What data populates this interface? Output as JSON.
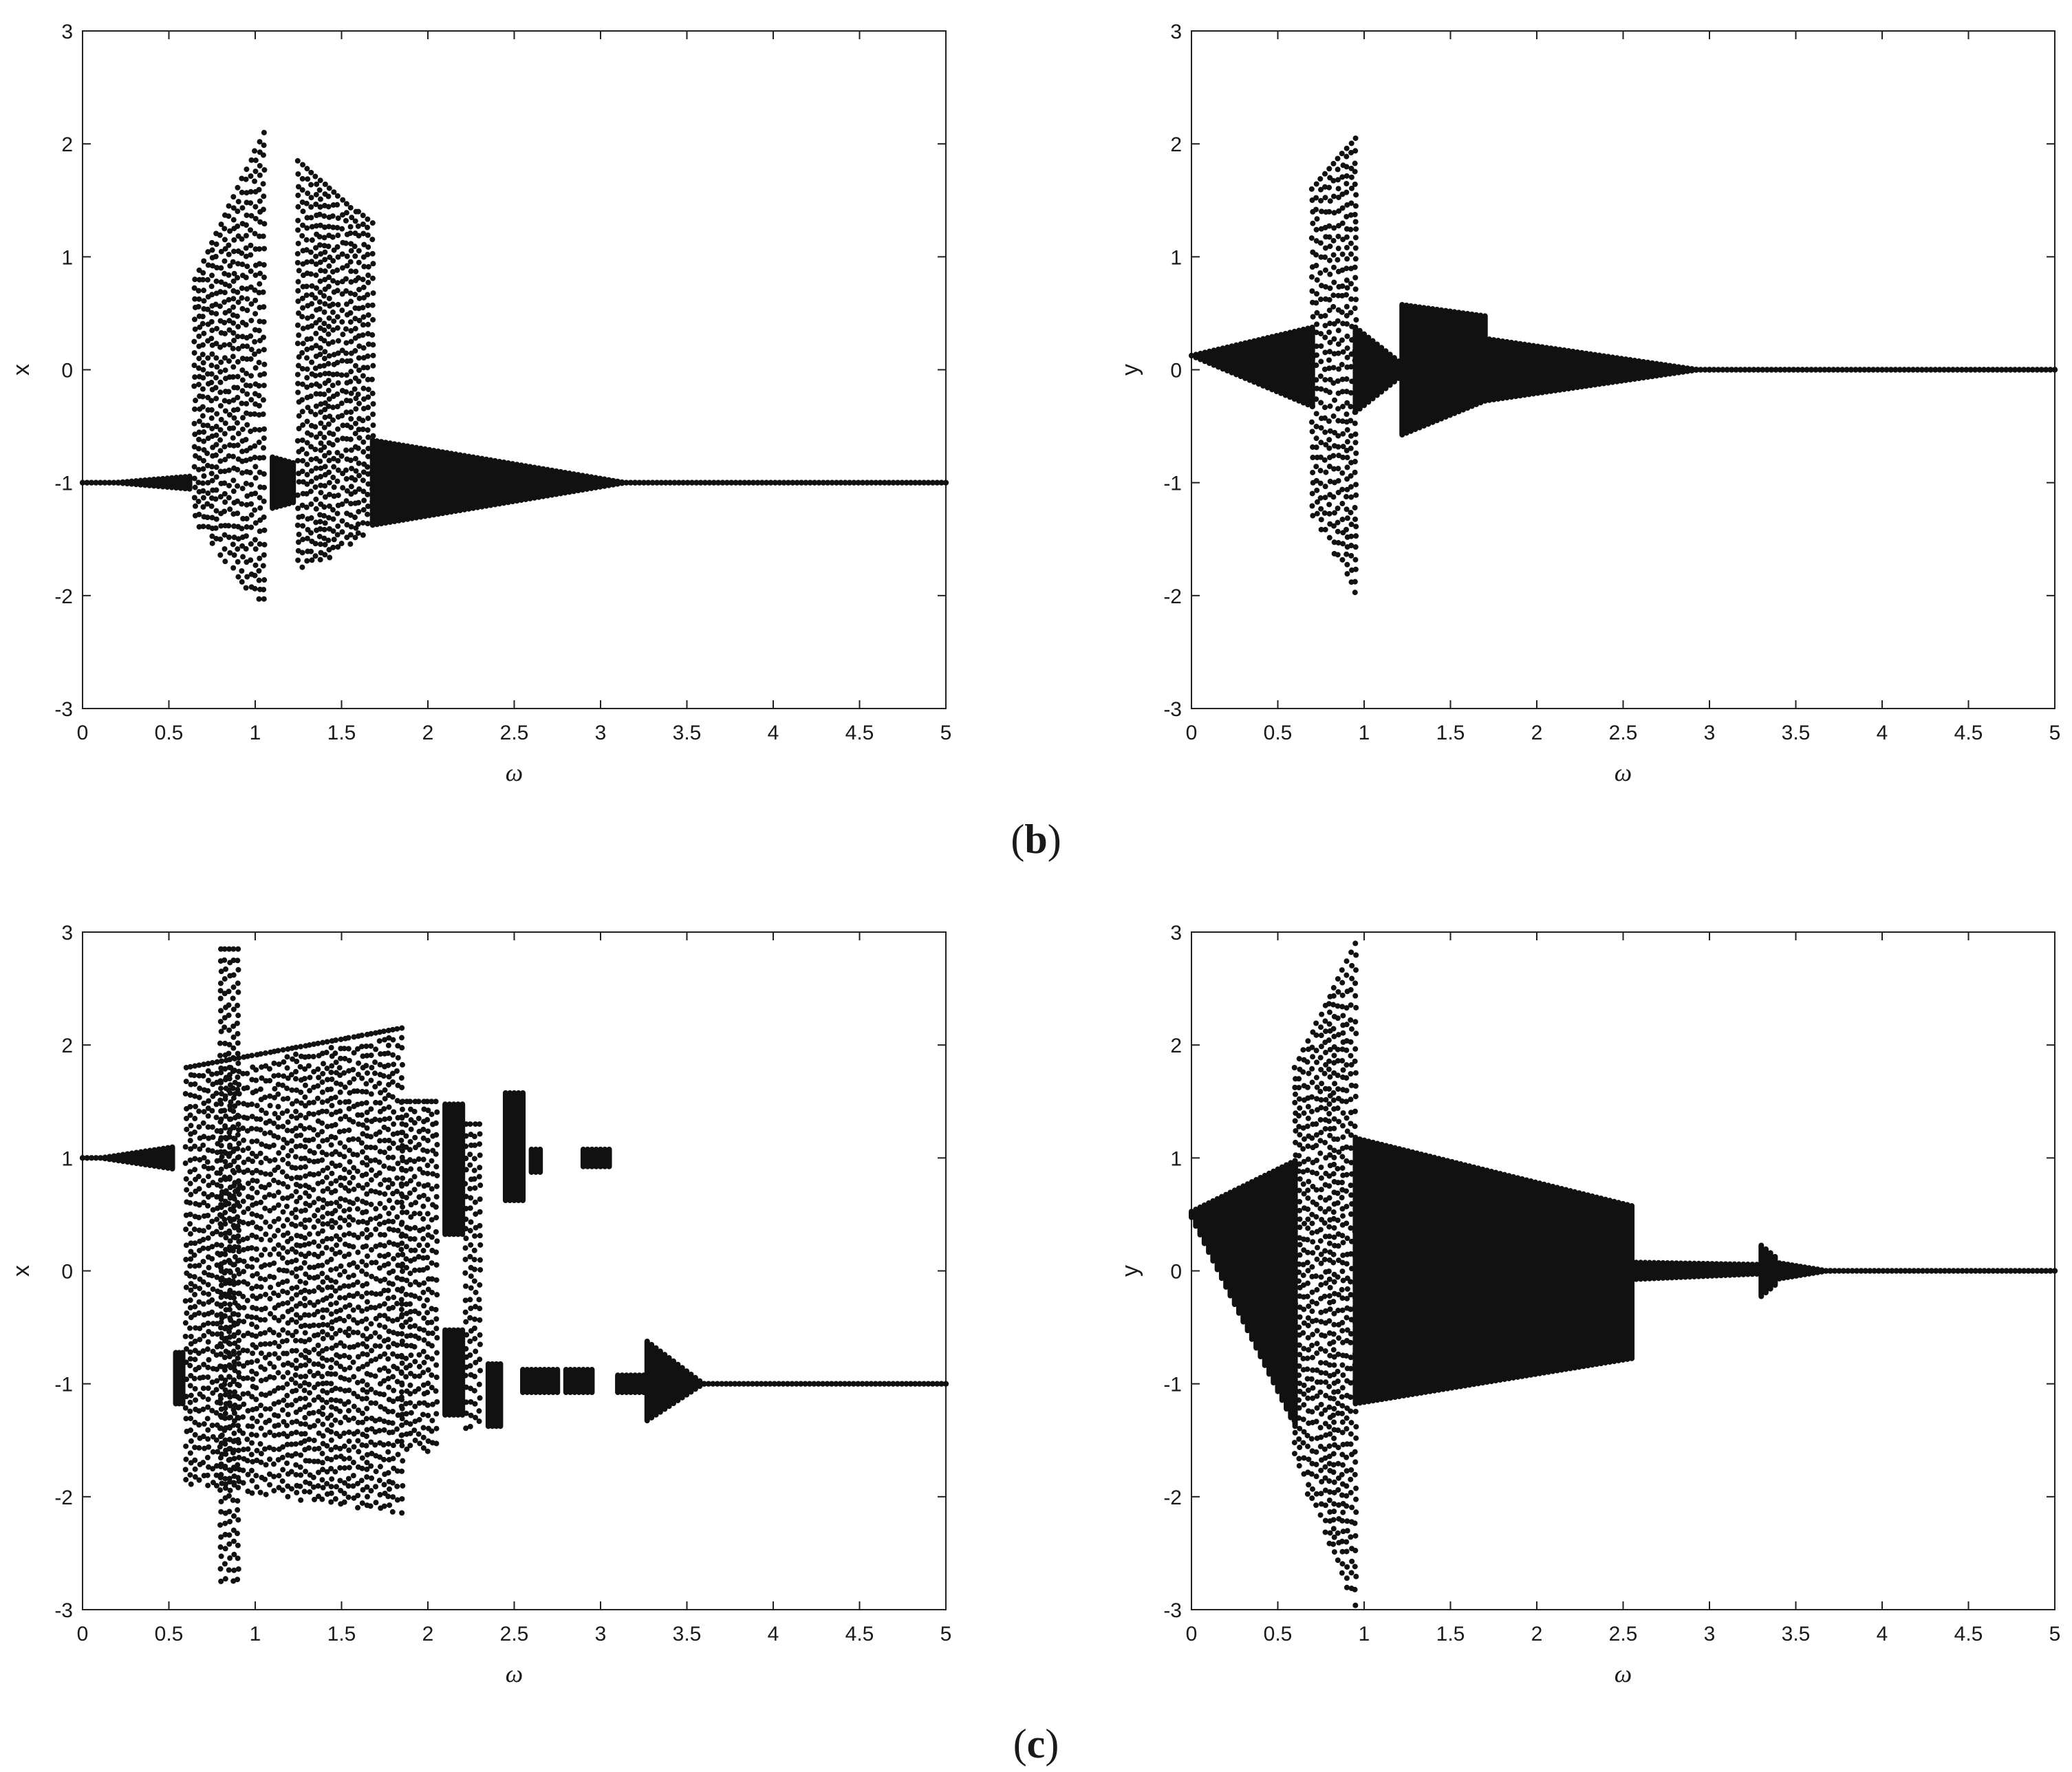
{
  "panels": [
    {
      "label": "b"
    },
    {
      "label": "c"
    }
  ],
  "chart_data": [
    {
      "type": "scatter",
      "panel": "b",
      "title": "",
      "xlabel": "ω",
      "ylabel": "x",
      "xlim": [
        0,
        5
      ],
      "ylim": [
        -3,
        3
      ],
      "xticks": [
        "0",
        "0.5",
        "1",
        "1.5",
        "2",
        "2.5",
        "3",
        "3.5",
        "4",
        "4.5",
        "5"
      ],
      "yticks": [
        "-3",
        "-2",
        "-1",
        "0",
        "1",
        "2",
        "3"
      ],
      "grid": false,
      "bands": [
        {
          "x": [
            0.0,
            0.62
          ],
          "lo": [
            -1.0,
            -1.08
          ],
          "hi": [
            -1.0,
            -0.92
          ]
        },
        {
          "x": [
            0.65,
            1.05
          ],
          "lo": [
            -1.35,
            -2.15
          ],
          "hi": [
            0.8,
            2.1
          ],
          "sparse": true
        },
        {
          "x": [
            1.1,
            1.22
          ],
          "lo": [
            -1.25,
            -1.2
          ],
          "hi": [
            -0.75,
            -0.8
          ]
        },
        {
          "x": [
            1.25,
            1.58
          ],
          "lo": [
            -1.8,
            -1.55
          ],
          "hi": [
            1.85,
            1.4
          ],
          "sparse": true
        },
        {
          "x": [
            1.6,
            1.68
          ],
          "lo": [
            -1.5,
            -1.4
          ],
          "hi": [
            1.4,
            1.3
          ],
          "sparse": true
        },
        {
          "x": [
            1.68,
            3.2
          ],
          "lo": [
            -1.4,
            -1.01
          ],
          "hi": [
            -0.6,
            -0.99
          ]
        }
      ],
      "line": {
        "x": [
          3.2,
          5.0
        ],
        "y": -1.0
      }
    },
    {
      "type": "scatter",
      "panel": "b",
      "title": "",
      "xlabel": "ω",
      "ylabel": "y",
      "xlim": [
        0,
        5
      ],
      "ylim": [
        -3,
        3
      ],
      "xticks": [
        "0",
        "0.5",
        "1",
        "1.5",
        "2",
        "2.5",
        "3",
        "3.5",
        "4",
        "4.5",
        "5"
      ],
      "yticks": [
        "-3",
        "-2",
        "-1",
        "0",
        "1",
        "2",
        "3"
      ],
      "grid": false,
      "bands": [
        {
          "x": [
            0.0,
            0.7
          ],
          "lo": [
            0.1,
            -0.35
          ],
          "hi": [
            0.15,
            0.4
          ]
        },
        {
          "x": [
            0.7,
            0.95
          ],
          "lo": [
            -1.3,
            -2.0
          ],
          "hi": [
            1.6,
            2.05
          ],
          "sparse": true
        },
        {
          "x": [
            0.95,
            1.2
          ],
          "lo": [
            -0.4,
            -0.1
          ],
          "hi": [
            0.4,
            0.1
          ]
        },
        {
          "x": [
            1.22,
            1.7
          ],
          "lo": [
            -0.6,
            -0.3
          ],
          "hi": [
            0.6,
            0.5
          ]
        },
        {
          "x": [
            1.7,
            3.0
          ],
          "lo": [
            -0.3,
            -0.01
          ],
          "hi": [
            0.3,
            0.01
          ]
        }
      ],
      "line": {
        "x": [
          3.0,
          5.0
        ],
        "y": 0.0
      }
    },
    {
      "type": "scatter",
      "panel": "c",
      "title": "",
      "xlabel": "ω",
      "ylabel": "x",
      "xlim": [
        0,
        5
      ],
      "ylim": [
        -3,
        3
      ],
      "xticks": [
        "0",
        "0.5",
        "1",
        "1.5",
        "2",
        "2.5",
        "3",
        "3.5",
        "4",
        "4.5",
        "5"
      ],
      "yticks": [
        "-3",
        "-2",
        "-1",
        "0",
        "1",
        "2",
        "3"
      ],
      "grid": false,
      "bands": [
        {
          "x": [
            0.0,
            0.52
          ],
          "lo": [
            1.0,
            0.88
          ],
          "hi": [
            1.0,
            1.12
          ]
        },
        {
          "x": [
            0.54,
            0.58
          ],
          "lo": [
            -1.2,
            -1.2
          ],
          "hi": [
            -0.7,
            -0.7
          ]
        },
        {
          "x": [
            0.6,
            1.85
          ],
          "lo": [
            -1.9,
            -2.15
          ],
          "hi": [
            1.8,
            2.15
          ],
          "sparse": true
        },
        {
          "x": [
            0.8,
            0.9
          ],
          "lo": [
            -2.75,
            -2.75
          ],
          "hi": [
            2.85,
            2.85
          ],
          "sparse": true
        },
        {
          "x": [
            1.85,
            2.05
          ],
          "lo": [
            -1.6,
            -1.6
          ],
          "hi": [
            1.5,
            1.5
          ],
          "sparse": true
        },
        {
          "x": [
            2.1,
            2.2
          ],
          "lo": [
            0.3,
            0.3
          ],
          "hi": [
            1.5,
            1.5
          ]
        },
        {
          "x": [
            2.1,
            2.2
          ],
          "lo": [
            -1.3,
            -1.3
          ],
          "hi": [
            -0.5,
            -0.5
          ]
        },
        {
          "x": [
            2.22,
            2.3
          ],
          "lo": [
            -1.4,
            -1.4
          ],
          "hi": [
            1.3,
            1.3
          ],
          "sparse": true
        },
        {
          "x": [
            2.35,
            2.42
          ],
          "lo": [
            -1.4,
            -1.4
          ],
          "hi": [
            -0.8,
            -0.8
          ]
        },
        {
          "x": [
            2.45,
            2.55
          ],
          "lo": [
            0.6,
            0.6
          ],
          "hi": [
            1.6,
            1.6
          ]
        },
        {
          "x": [
            2.55,
            2.75
          ],
          "lo": [
            -1.1,
            -1.1
          ],
          "hi": [
            -0.85,
            -0.85
          ]
        },
        {
          "x": [
            2.6,
            2.65
          ],
          "lo": [
            0.85,
            0.85
          ],
          "hi": [
            1.1,
            1.1
          ]
        },
        {
          "x": [
            2.8,
            2.95
          ],
          "lo": [
            -1.1,
            -1.1
          ],
          "hi": [
            -0.85,
            -0.85
          ]
        },
        {
          "x": [
            2.9,
            3.05
          ],
          "lo": [
            0.9,
            0.9
          ],
          "hi": [
            1.1,
            1.1
          ]
        },
        {
          "x": [
            3.1,
            3.25
          ],
          "lo": [
            -1.1,
            -1.1
          ],
          "hi": [
            -0.9,
            -0.9
          ]
        },
        {
          "x": [
            3.27,
            3.6
          ],
          "lo": [
            -1.35,
            -1.02
          ],
          "hi": [
            -0.6,
            -0.98
          ]
        }
      ],
      "line": {
        "x": [
          3.6,
          5.0
        ],
        "y": -1.0
      }
    },
    {
      "type": "scatter",
      "panel": "c",
      "title": "",
      "xlabel": "ω",
      "ylabel": "y",
      "xlim": [
        0,
        5
      ],
      "ylim": [
        -3,
        3
      ],
      "xticks": [
        "0",
        "0.5",
        "1",
        "1.5",
        "2",
        "2.5",
        "3",
        "3.5",
        "4",
        "4.5",
        "5"
      ],
      "yticks": [
        "-3",
        "-2",
        "-1",
        "0",
        "1",
        "2",
        "3"
      ],
      "grid": false,
      "bands": [
        {
          "x": [
            0.0,
            0.6
          ],
          "lo": [
            0.45,
            -1.4
          ],
          "hi": [
            0.55,
            1.0
          ]
        },
        {
          "x": [
            0.6,
            0.95
          ],
          "lo": [
            -1.7,
            -3.0
          ],
          "hi": [
            1.8,
            2.9
          ],
          "sparse": true
        },
        {
          "x": [
            0.95,
            2.55
          ],
          "lo": [
            -1.2,
            -0.8
          ],
          "hi": [
            1.2,
            0.6
          ]
        },
        {
          "x": [
            2.55,
            3.3
          ],
          "lo": [
            -0.1,
            -0.05
          ],
          "hi": [
            0.1,
            0.08
          ]
        },
        {
          "x": [
            3.3,
            3.38
          ],
          "lo": [
            -0.25,
            -0.15
          ],
          "hi": [
            0.25,
            0.15
          ]
        },
        {
          "x": [
            3.38,
            3.7
          ],
          "lo": [
            -0.1,
            -0.02
          ],
          "hi": [
            0.1,
            0.02
          ]
        }
      ],
      "line": {
        "x": [
          3.7,
          5.0
        ],
        "y": 0.0
      }
    }
  ]
}
